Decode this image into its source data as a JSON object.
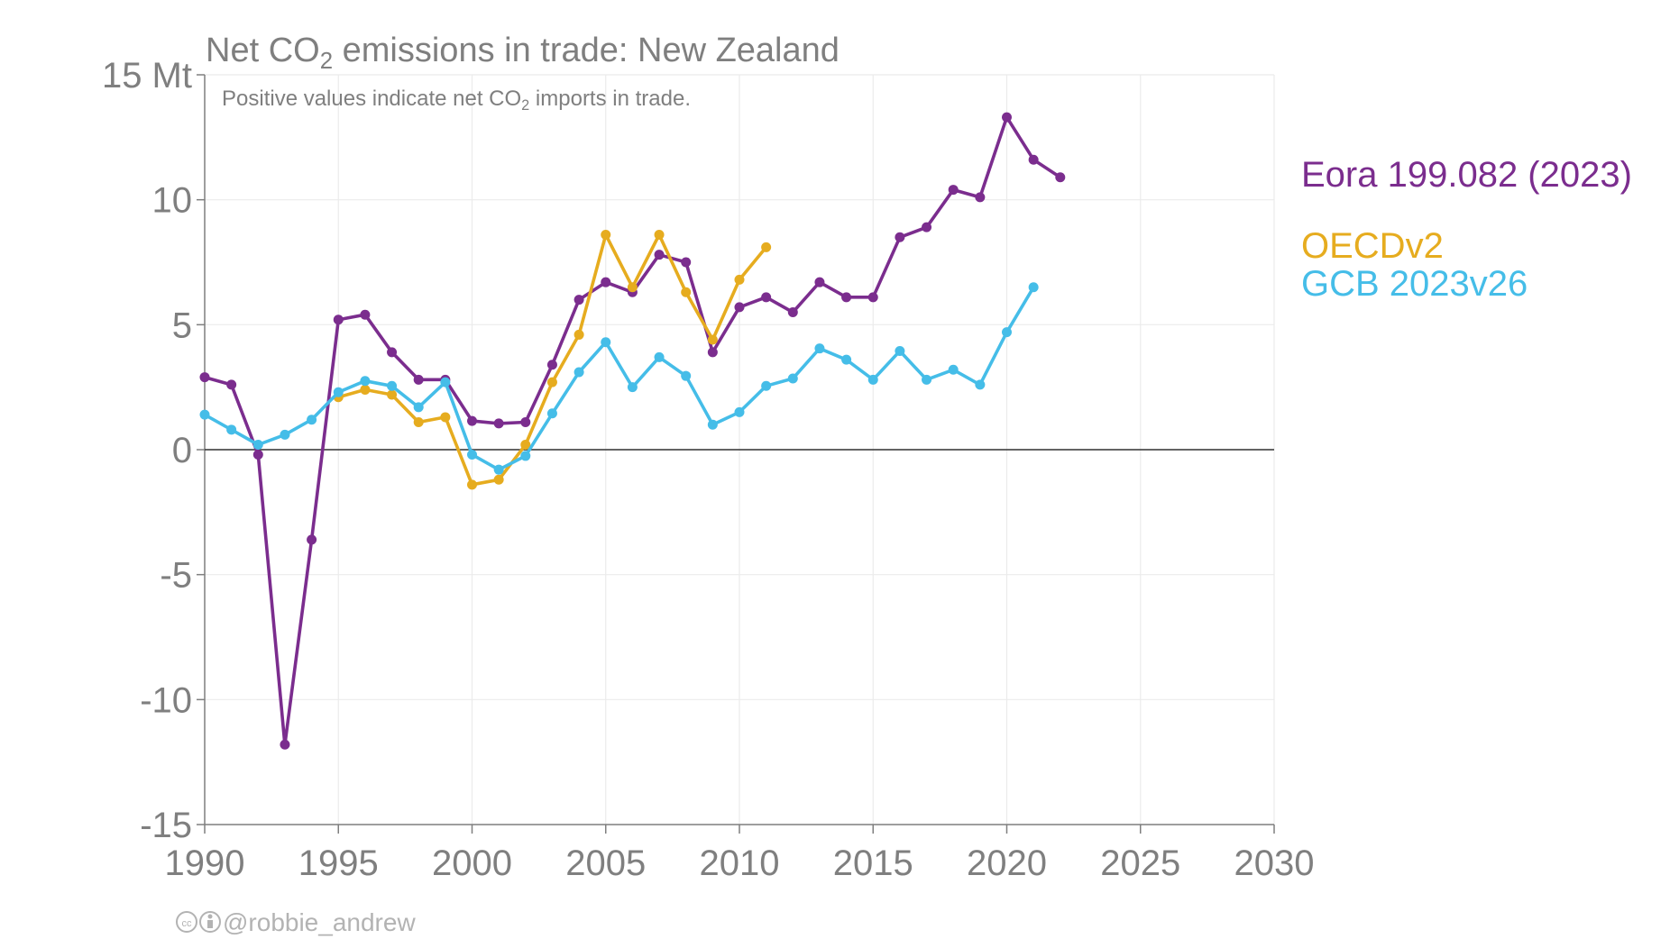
{
  "chart_data": {
    "type": "line",
    "title": "Net CO₂ emissions in trade: New Zealand",
    "title_parts": [
      "Net CO",
      "2",
      " emissions in trade: New Zealand"
    ],
    "subtitle": "Positive values indicate net CO₂ imports in trade.",
    "subtitle_parts": [
      "Positive values indicate net CO",
      "2",
      " imports in trade."
    ],
    "y_unit": "Mt",
    "ylim": [
      -15,
      15
    ],
    "y_ticks": [
      15,
      10,
      5,
      0,
      -5,
      -10,
      -15
    ],
    "y_tick_labels": [
      "15 Mt",
      "10",
      "5",
      "0",
      "-5",
      "-10",
      "-15"
    ],
    "xlim": [
      1990,
      2030
    ],
    "x_ticks": [
      1990,
      1995,
      2000,
      2005,
      2010,
      2015,
      2020,
      2025,
      2030
    ],
    "x_tick_labels": [
      "1990",
      "1995",
      "2000",
      "2005",
      "2010",
      "2015",
      "2020",
      "2025",
      "2030"
    ],
    "grid": true,
    "legend_placement": "right",
    "series": [
      {
        "name": "Eora 199.082 (2023)",
        "color": "#7b2d8e",
        "x": [
          1990,
          1991,
          1992,
          1993,
          1994,
          1995,
          1996,
          1997,
          1998,
          1999,
          2000,
          2001,
          2002,
          2003,
          2004,
          2005,
          2006,
          2007,
          2008,
          2009,
          2010,
          2011,
          2012,
          2013,
          2014,
          2015,
          2016,
          2017,
          2018,
          2019,
          2020,
          2021,
          2022
        ],
        "y": [
          2.9,
          2.6,
          -0.2,
          -11.8,
          -3.6,
          5.2,
          5.4,
          3.9,
          2.8,
          2.8,
          1.15,
          1.05,
          1.1,
          3.4,
          6.0,
          6.7,
          6.3,
          7.8,
          7.5,
          3.9,
          5.7,
          6.1,
          5.5,
          6.7,
          6.1,
          6.1,
          8.5,
          8.9,
          10.4,
          10.1,
          13.3,
          11.6,
          10.9
        ]
      },
      {
        "name": "OECDv2",
        "color": "#e6ac1f",
        "x": [
          1995,
          1996,
          1997,
          1998,
          1999,
          2000,
          2001,
          2002,
          2003,
          2004,
          2005,
          2006,
          2007,
          2008,
          2009,
          2010,
          2011
        ],
        "y": [
          2.1,
          2.4,
          2.2,
          1.1,
          1.3,
          -1.4,
          -1.2,
          0.2,
          2.7,
          4.6,
          8.6,
          6.5,
          8.6,
          6.3,
          4.4,
          6.8,
          8.1
        ]
      },
      {
        "name": "GCB 2023v26",
        "color": "#45bde8",
        "x": [
          1990,
          1991,
          1992,
          1993,
          1994,
          1995,
          1996,
          1997,
          1998,
          1999,
          2000,
          2001,
          2002,
          2003,
          2004,
          2005,
          2006,
          2007,
          2008,
          2009,
          2010,
          2011,
          2012,
          2013,
          2014,
          2015,
          2016,
          2017,
          2018,
          2019,
          2020,
          2021
        ],
        "y": [
          1.4,
          0.8,
          0.2,
          0.6,
          1.2,
          2.3,
          2.75,
          2.55,
          1.7,
          2.7,
          -0.2,
          -0.8,
          -0.25,
          1.45,
          3.1,
          4.3,
          2.5,
          3.7,
          2.95,
          1.0,
          1.5,
          2.55,
          2.85,
          4.05,
          3.6,
          2.8,
          3.95,
          2.8,
          3.2,
          2.6,
          4.7,
          6.5
        ]
      }
    ]
  },
  "credit": {
    "text": "@robbie_andrew",
    "icons": [
      "creative-commons-icon",
      "attribution-icon"
    ]
  }
}
